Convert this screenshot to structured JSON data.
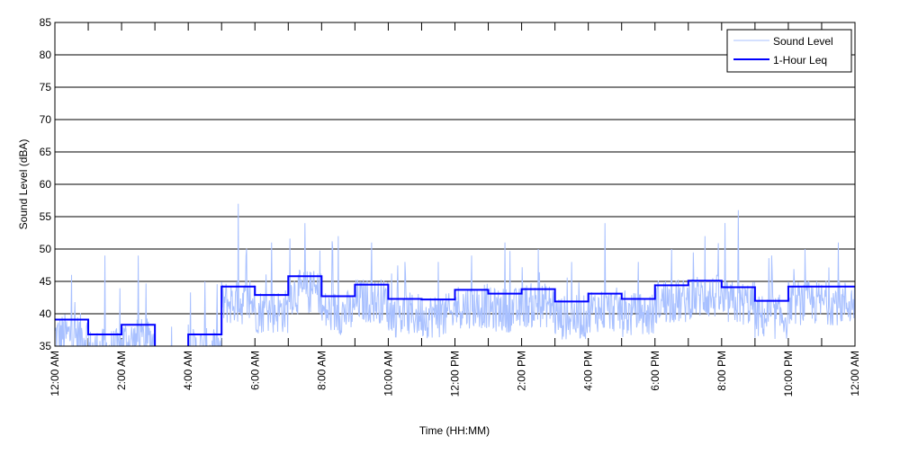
{
  "chart_data": {
    "type": "line",
    "title": "",
    "xlabel": "Time (HH:MM)",
    "ylabel": "Sound Level (dBA)",
    "ylim": [
      35,
      85
    ],
    "yticks": [
      "35",
      "40",
      "45",
      "50",
      "55",
      "60",
      "65",
      "70",
      "75",
      "80",
      "85"
    ],
    "xlim_hours": [
      0,
      24
    ],
    "xticks": [
      "12:00 AM",
      "2:00 AM",
      "4:00 AM",
      "6:00 AM",
      "8:00 AM",
      "10:00 AM",
      "12:00 PM",
      "2:00 PM",
      "4:00 PM",
      "6:00 PM",
      "8:00 PM",
      "10:00 PM",
      "12:00 AM"
    ],
    "grid": "horizontal",
    "legend_position": "top-right",
    "series": [
      {
        "name": "Sound Level",
        "color": "#a8c0ff",
        "style": "thin line, per-minute noisy trace",
        "hourly_peaks": [
          46,
          49,
          49,
          38,
          45,
          57,
          51,
          54,
          52,
          51,
          48,
          48,
          49,
          51,
          50,
          48,
          54,
          48,
          50,
          52,
          56,
          49,
          50,
          51
        ]
      },
      {
        "name": "1-Hour Leq",
        "color": "#0000ff",
        "style": "step",
        "hours": [
          0,
          1,
          2,
          3,
          4,
          5,
          6,
          7,
          8,
          9,
          10,
          11,
          12,
          13,
          14,
          15,
          16,
          17,
          18,
          19,
          20,
          21,
          22,
          23
        ],
        "values": [
          39.1,
          36.8,
          38.3,
          33.5,
          36.8,
          44.2,
          42.9,
          45.8,
          42.7,
          44.5,
          42.3,
          42.2,
          43.7,
          43.1,
          43.8,
          41.9,
          43.1,
          42.3,
          44.4,
          45.1,
          44.1,
          42.0,
          44.2,
          44.2
        ]
      }
    ]
  }
}
